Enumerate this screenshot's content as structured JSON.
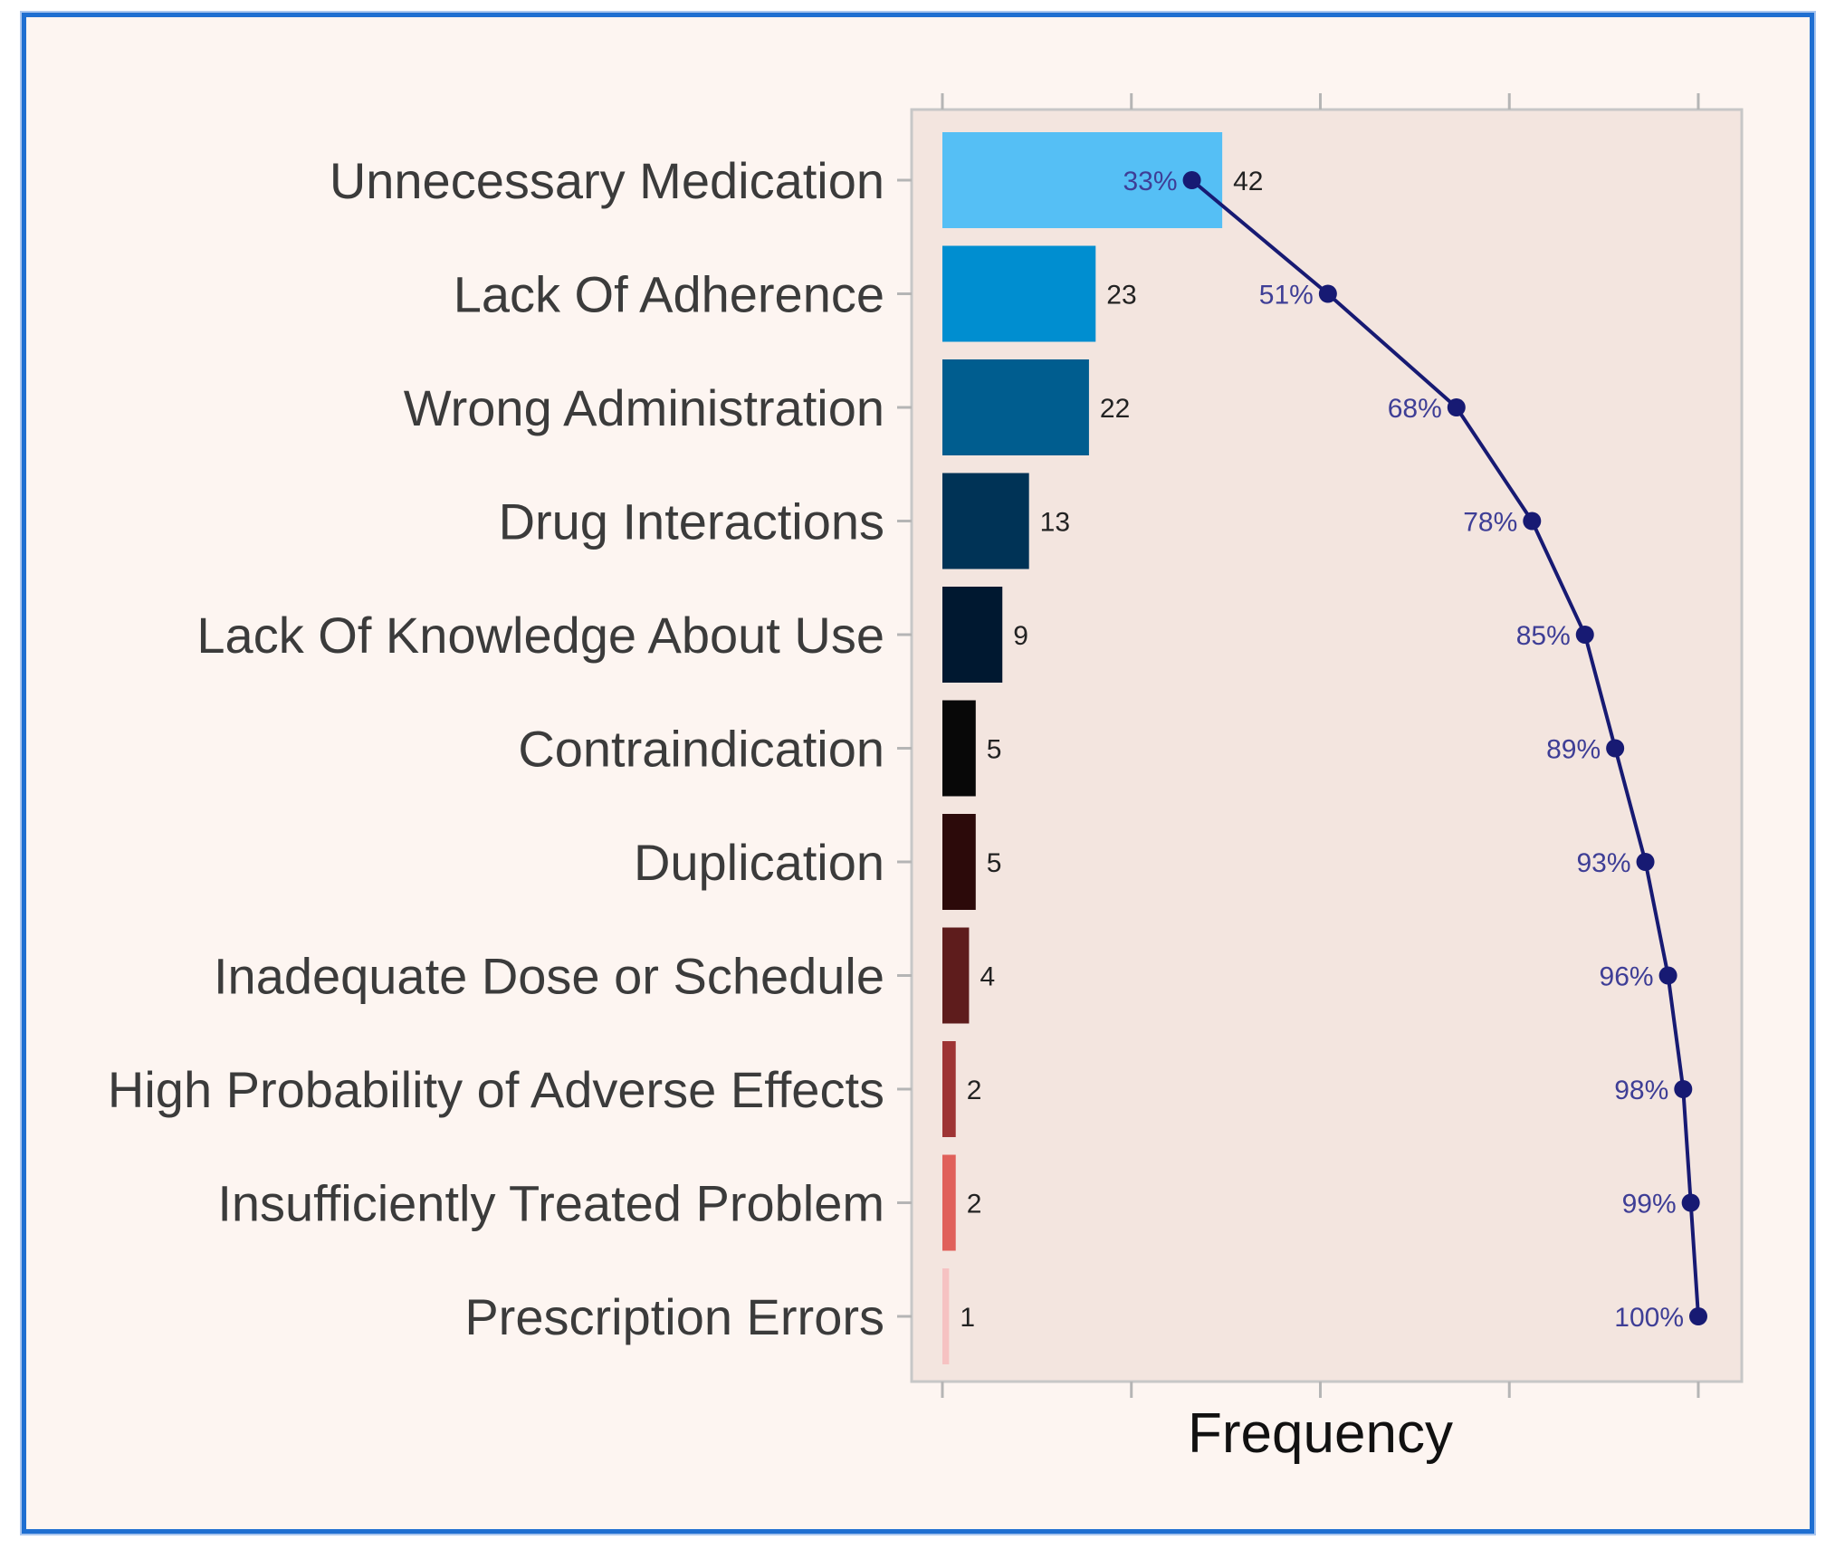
{
  "chart_data": {
    "type": "bar",
    "orientation": "horizontal",
    "title": "",
    "xlabel": "Frequency",
    "ylabel": "",
    "categories": [
      "Unnecessary Medication",
      "Lack Of Adherence",
      "Wrong Administration",
      "Drug Interactions",
      "Lack Of Knowledge About Use",
      "Contraindication",
      "Duplication",
      "Inadequate Dose or Schedule",
      "High Probability of Adverse Effects",
      "Insufficiently Treated Problem",
      "Prescription Errors"
    ],
    "values": [
      42,
      23,
      22,
      13,
      9,
      5,
      5,
      4,
      2,
      2,
      1
    ],
    "value_labels": [
      "42",
      "23",
      "22",
      "13",
      "9",
      "5",
      "5",
      "4",
      "2",
      "2",
      "1"
    ],
    "cumulative_percent": [
      33,
      51,
      68,
      78,
      85,
      89,
      93,
      96,
      98,
      99,
      100
    ],
    "cumulative_labels": [
      "33%",
      "51%",
      "68%",
      "78%",
      "85%",
      "89%",
      "93%",
      "96%",
      "98%",
      "99%",
      "100%"
    ],
    "bar_colors": [
      "#55bff5",
      "#008ed0",
      "#005d8f",
      "#003356",
      "#001830",
      "#080808",
      "#2c0a0a",
      "#5e1c1c",
      "#9e3434",
      "#e0605a",
      "#f6c2c2"
    ],
    "line_color": "#171a73",
    "xlim": [
      0,
      100
    ],
    "grid": false,
    "legend": "none"
  }
}
